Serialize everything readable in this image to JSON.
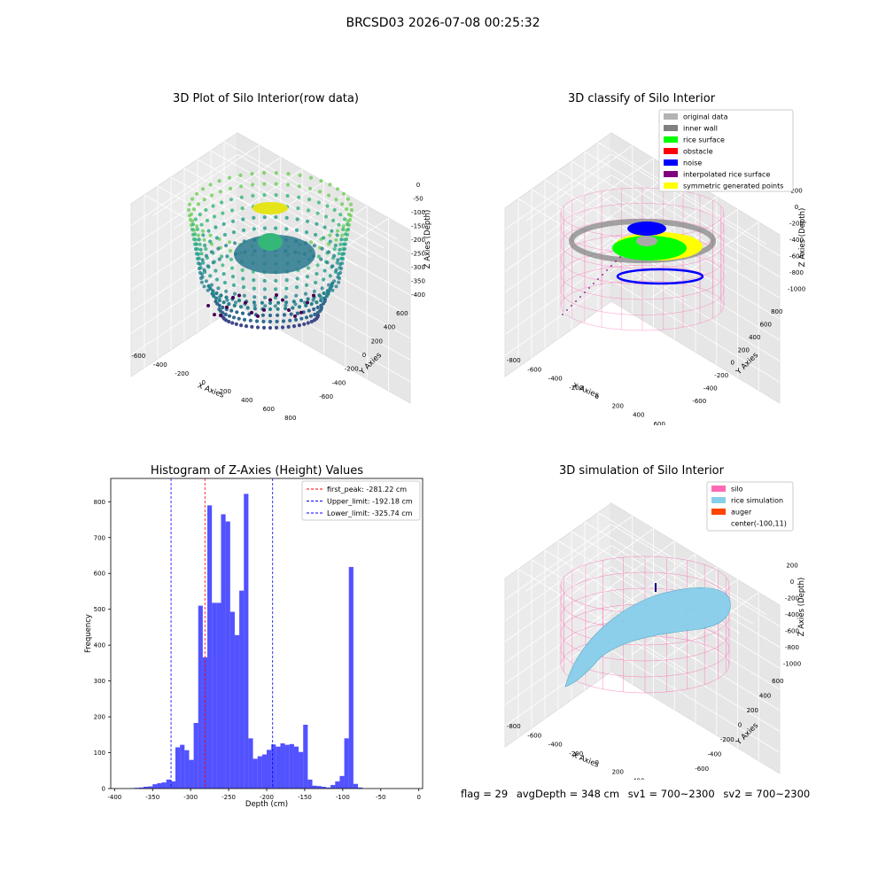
{
  "figure": {
    "suptitle": "BRCSD03 2026-07-08 00:25:32"
  },
  "panels": {
    "raw": {
      "title": "3D Plot of Silo Interior(row data)",
      "xlabel": "X Axies",
      "ylabel": "Y Axies",
      "zlabel": "Z Axies (Depth)",
      "xticks": [
        "-600",
        "-400",
        "-200",
        "0",
        "200",
        "400",
        "600",
        "800"
      ],
      "yticks": [
        "-600",
        "-400",
        "-200",
        "0",
        "200",
        "400",
        "600"
      ],
      "zticks": [
        "0",
        "-50",
        "-100",
        "-150",
        "-200",
        "-250",
        "-300",
        "-350",
        "-400"
      ]
    },
    "classify": {
      "title": "3D classify of Silo Interior",
      "xlabel": "X Axies",
      "ylabel": "Y Axies",
      "zlabel": "Z Axies (Depth)",
      "xticks": [
        "-800",
        "-600",
        "-400",
        "-200",
        "0",
        "200",
        "400",
        "600"
      ],
      "yticks": [
        "-600",
        "-400",
        "-200",
        "0",
        "200",
        "400",
        "600",
        "800"
      ],
      "zticks": [
        "200",
        "0",
        "-200",
        "-400",
        "-600",
        "-800",
        "-1000"
      ],
      "legend": [
        {
          "label": "original data",
          "color": "#b3b3b3"
        },
        {
          "label": "inner wall",
          "color": "#808080"
        },
        {
          "label": "rice surface",
          "color": "#00ff00"
        },
        {
          "label": "obstacle",
          "color": "#ff0000"
        },
        {
          "label": "noise",
          "color": "#0000ff"
        },
        {
          "label": "interpolated rice surface",
          "color": "#800080"
        },
        {
          "label": "symmetric generated points",
          "color": "#ffff00"
        }
      ]
    },
    "simulation": {
      "title": "3D simulation of Silo Interior",
      "xlabel": "X Axies",
      "ylabel": "Y Axies",
      "zlabel": "Z Axies (Depth)",
      "xticks": [
        "-800",
        "-600",
        "-400",
        "-200",
        "0",
        "200",
        "400",
        "600"
      ],
      "yticks": [
        "-600",
        "-400",
        "-200",
        "0",
        "200",
        "400",
        "600"
      ],
      "zticks": [
        "200",
        "0",
        "-200",
        "-400",
        "-600",
        "-800",
        "-1000"
      ],
      "legend": [
        {
          "label": "silo",
          "color": "#ff69b4"
        },
        {
          "label": "rice simulation",
          "color": "#87ceeb"
        },
        {
          "label": "auger",
          "color": "#ff4500"
        },
        {
          "label": "center(-100,11)",
          "color": ""
        }
      ]
    }
  },
  "info": {
    "flag": "flag = 29",
    "avg_depth": "avgDepth = 348 cm",
    "sv1": "sv1 = 700~2300",
    "sv2": "sv2 = 700~2300"
  },
  "chart_data": {
    "type": "bar",
    "title": "Histogram of Z-Axies (Height) Values",
    "xlabel": "Depth (cm)",
    "ylabel": "Frequency",
    "xlim": [
      -405,
      5
    ],
    "ylim": [
      0,
      865
    ],
    "xticks": [
      -400,
      -350,
      -300,
      -250,
      -200,
      -150,
      -100,
      -50,
      0
    ],
    "yticks": [
      0,
      100,
      200,
      300,
      400,
      500,
      600,
      700,
      800
    ],
    "bar_color": "#0000ff",
    "bins": [
      [
        -380,
        -374,
        1
      ],
      [
        -374,
        -368,
        2
      ],
      [
        -368,
        -362,
        3
      ],
      [
        -362,
        -356,
        5
      ],
      [
        -356,
        -350,
        6
      ],
      [
        -350,
        -344,
        12
      ],
      [
        -344,
        -338,
        15
      ],
      [
        -338,
        -332,
        17
      ],
      [
        -332,
        -326,
        25
      ],
      [
        -326,
        -320,
        20
      ],
      [
        -320,
        -314,
        115
      ],
      [
        -314,
        -308,
        122
      ],
      [
        -308,
        -302,
        107
      ],
      [
        -302,
        -296,
        80
      ],
      [
        -296,
        -290,
        183
      ],
      [
        -290,
        -284,
        510
      ],
      [
        -284,
        -278,
        366
      ],
      [
        -278,
        -272,
        790
      ],
      [
        -272,
        -266,
        518
      ],
      [
        -266,
        -260,
        518
      ],
      [
        -260,
        -254,
        765
      ],
      [
        -254,
        -248,
        745
      ],
      [
        -248,
        -242,
        493
      ],
      [
        -242,
        -236,
        428
      ],
      [
        -236,
        -230,
        552
      ],
      [
        -230,
        -224,
        822
      ],
      [
        -224,
        -218,
        140
      ],
      [
        -218,
        -212,
        83
      ],
      [
        -212,
        -206,
        90
      ],
      [
        -206,
        -200,
        95
      ],
      [
        -200,
        -194,
        108
      ],
      [
        -194,
        -188,
        123
      ],
      [
        -188,
        -182,
        117
      ],
      [
        -182,
        -176,
        126
      ],
      [
        -176,
        -170,
        122
      ],
      [
        -170,
        -164,
        124
      ],
      [
        -164,
        -158,
        117
      ],
      [
        -158,
        -152,
        102
      ],
      [
        -152,
        -146,
        178
      ],
      [
        -146,
        -140,
        25
      ],
      [
        -140,
        -134,
        8
      ],
      [
        -134,
        -128,
        7
      ],
      [
        -128,
        -122,
        5
      ],
      [
        -122,
        -116,
        3
      ],
      [
        -116,
        -110,
        10
      ],
      [
        -110,
        -104,
        20
      ],
      [
        -104,
        -98,
        35
      ],
      [
        -98,
        -92,
        140
      ],
      [
        -92,
        -86,
        618
      ],
      [
        -86,
        -80,
        13
      ],
      [
        -80,
        -74,
        3
      ]
    ],
    "vlines": [
      {
        "label": "first_peak: -281.22 cm",
        "x": -281.22,
        "color": "#ff0000"
      },
      {
        "label": "Upper_limit: -192.18 cm",
        "x": -192.18,
        "color": "#0000ff"
      },
      {
        "label": "Lower_limit: -325.74 cm",
        "x": -325.74,
        "color": "#0000ff"
      }
    ],
    "legend_position": "upper right"
  }
}
